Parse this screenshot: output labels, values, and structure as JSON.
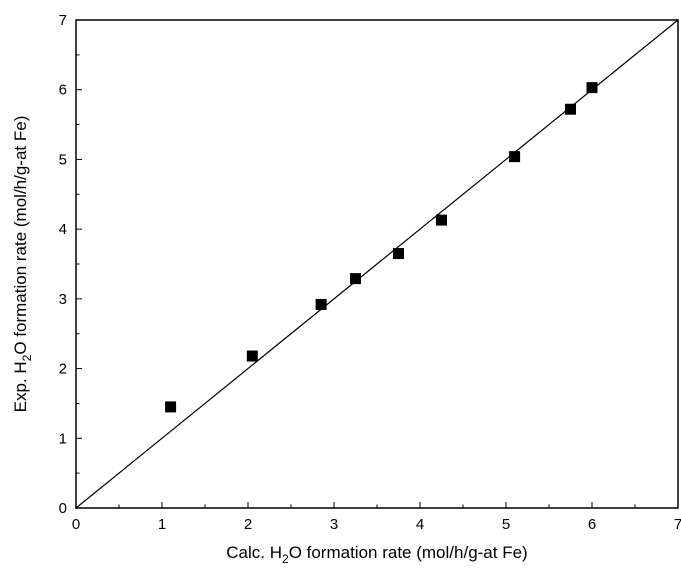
{
  "chart_data": {
    "type": "scatter",
    "title": "",
    "xlabel": "Calc. H₂O formation rate (mol/h/g-at Fe)",
    "ylabel": "Exp. H₂O formation rate (mol/h/g-at Fe)",
    "xlabel_parts": {
      "before": "Calc. H",
      "sub": "2",
      "after": "O formation rate (mol/h/g-at Fe)"
    },
    "ylabel_parts": {
      "before": "Exp. H",
      "sub": "2",
      "after": "O formation rate (mol/h/g-at Fe)"
    },
    "xlim": [
      0,
      7
    ],
    "ylim": [
      0,
      7
    ],
    "xticks": [
      "0",
      "1",
      "2",
      "3",
      "4",
      "5",
      "6",
      "7"
    ],
    "yticks": [
      "0",
      "1",
      "2",
      "3",
      "4",
      "5",
      "6",
      "7"
    ],
    "grid": false,
    "legend": "none",
    "marker": "square",
    "marker_color": "#000000",
    "series": [
      {
        "x": [
          1.1,
          2.05,
          2.85,
          3.25,
          3.75,
          4.25,
          5.1,
          5.75,
          6.0
        ],
        "y": [
          1.45,
          2.18,
          2.92,
          3.29,
          3.65,
          4.13,
          5.04,
          5.72,
          6.03
        ]
      }
    ],
    "reference_line": {
      "x": [
        0,
        7
      ],
      "y": [
        0,
        7
      ]
    }
  }
}
